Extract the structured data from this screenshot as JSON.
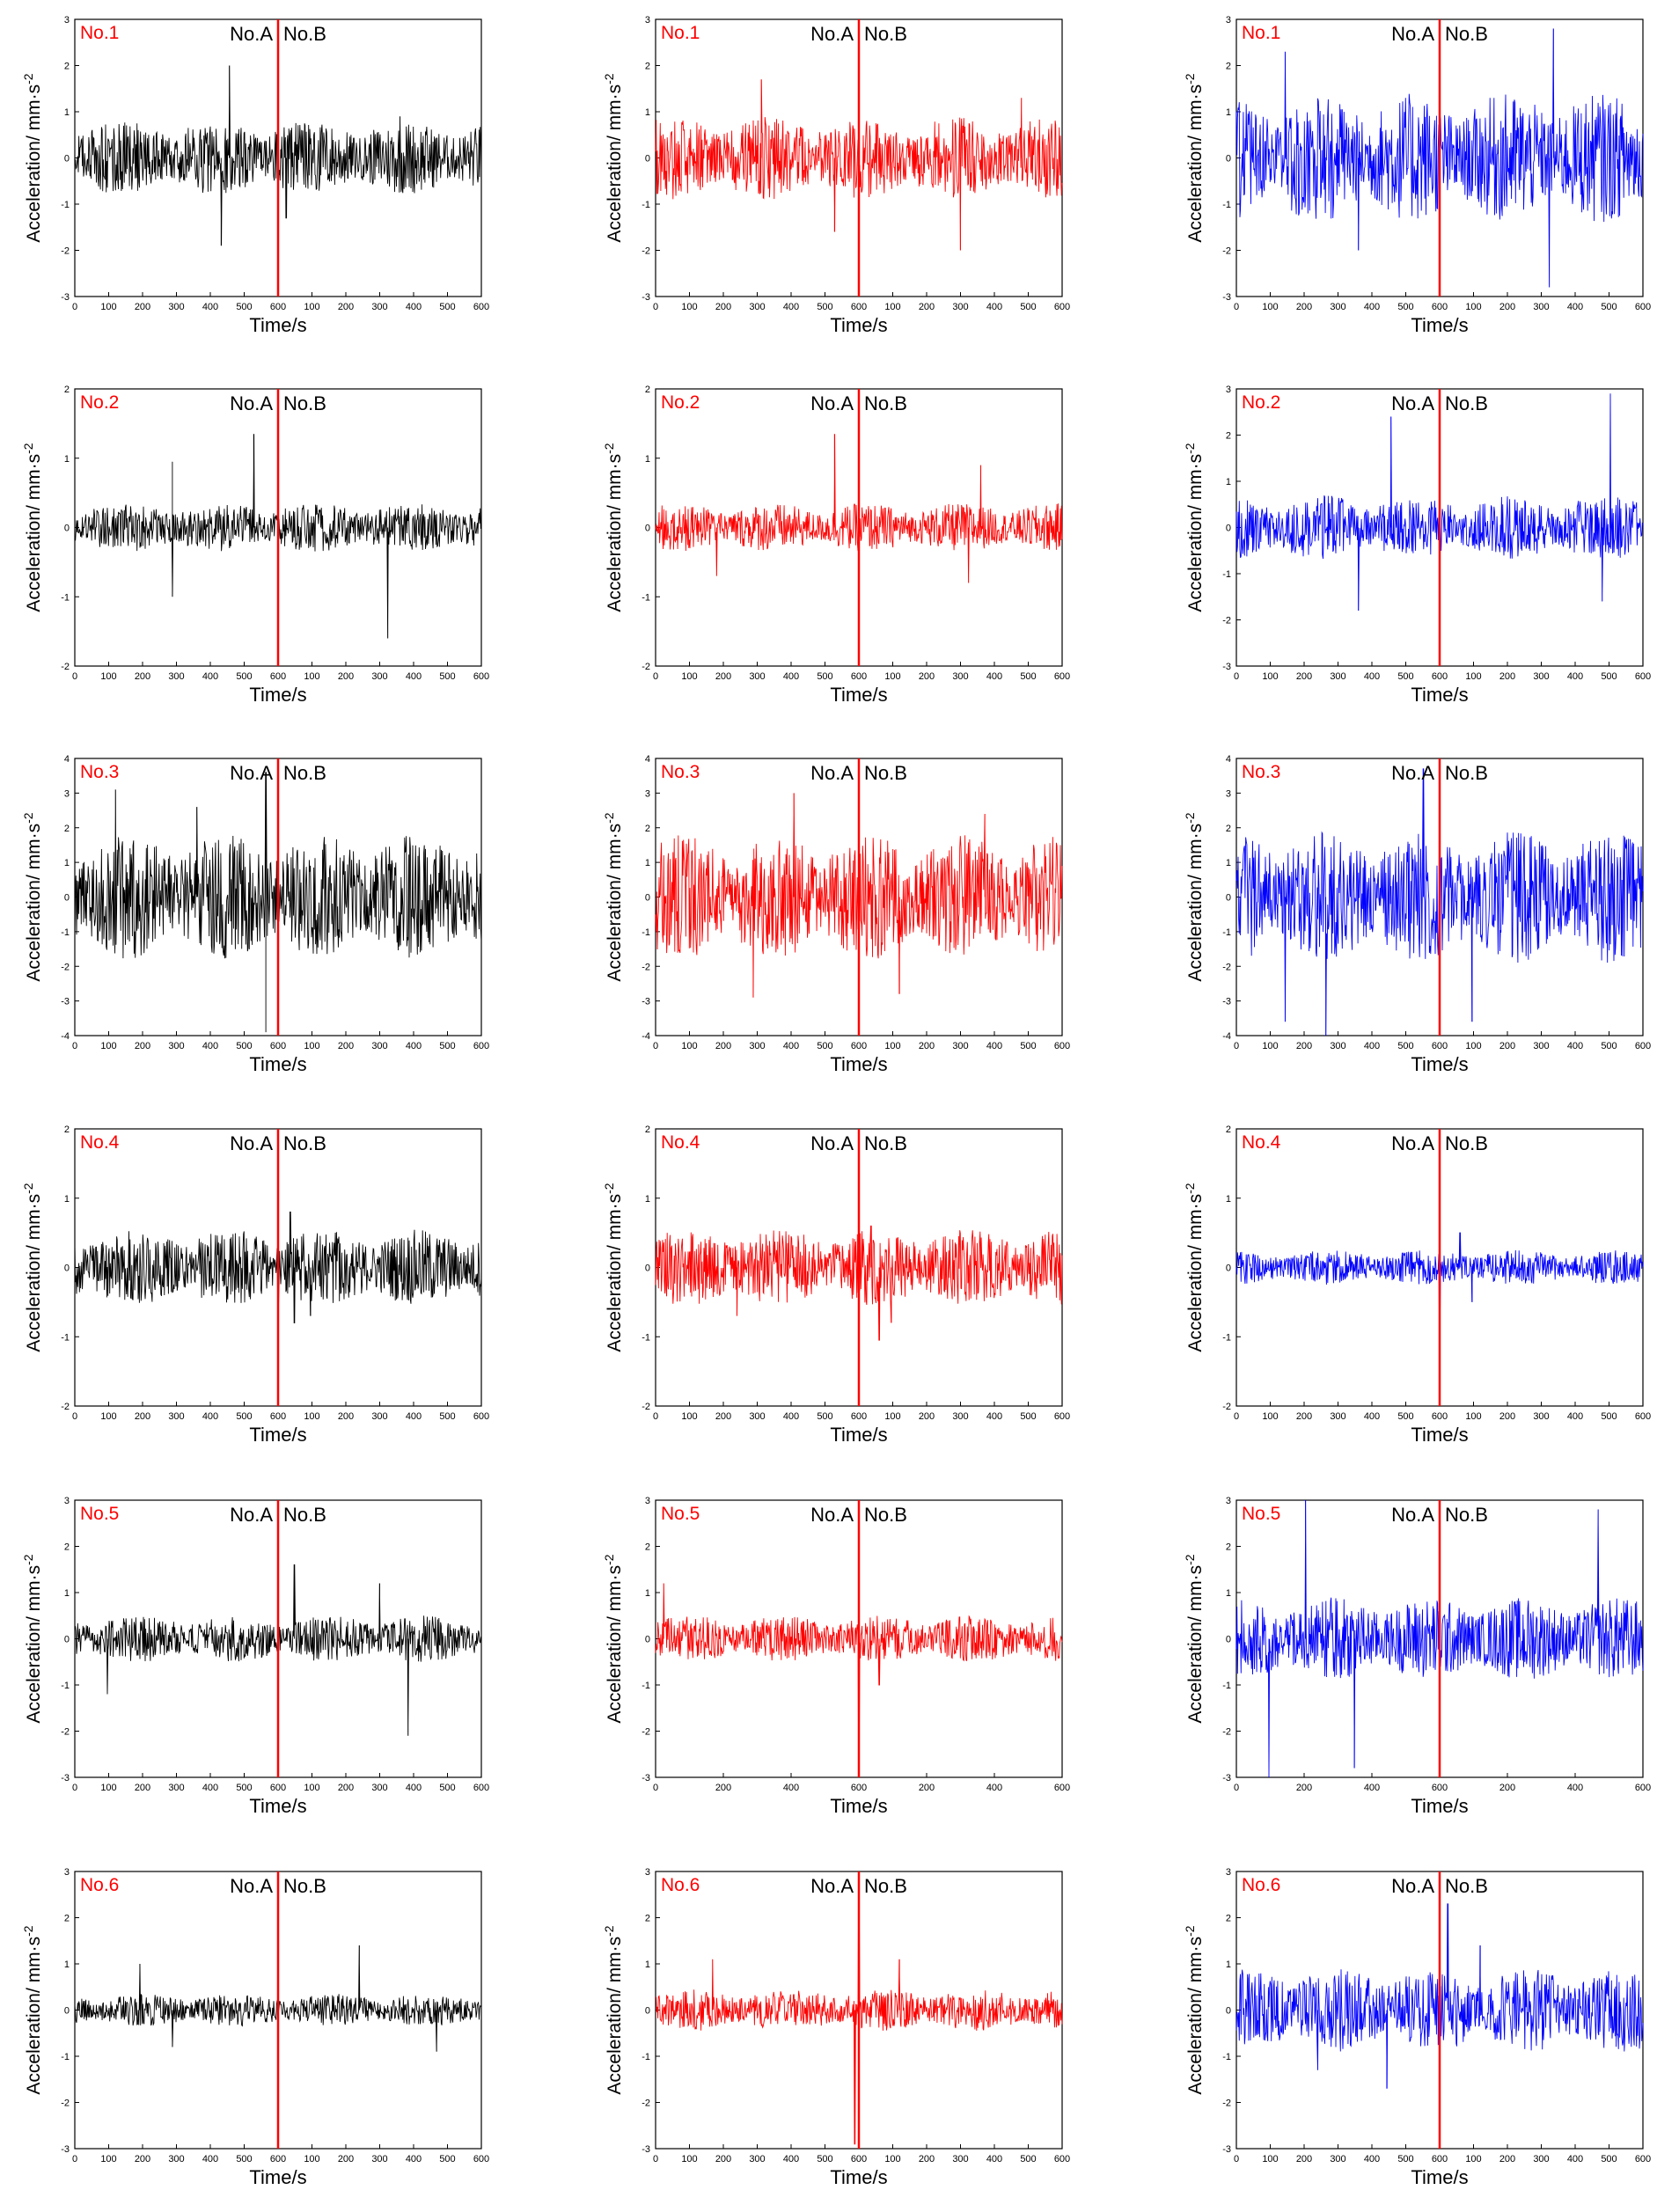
{
  "labels": {
    "ylabel": "Acceleration/ mm·s",
    "ylabel_sup": "-2",
    "xlabel": "Time/s",
    "left_label": "No.A",
    "right_label": "No.B"
  },
  "colors": {
    "columns": [
      "#000000",
      "#ff0000",
      "#0000ff"
    ],
    "divider": "#ff0000",
    "panel_label": "#ff0000"
  },
  "chart_data": [
    {
      "type": "line",
      "row": 1,
      "col": 1,
      "title": "No.1",
      "color": "#000000",
      "xlabel": "Time/s",
      "xticks": [
        "0",
        "100",
        "200",
        "300",
        "400",
        "500",
        "600",
        "100",
        "200",
        "300",
        "400",
        "500",
        "600"
      ],
      "ylim": [
        -3,
        3
      ],
      "yticks": [
        -3,
        -2,
        -1,
        0,
        1,
        2,
        3
      ],
      "amplitude": 0.8,
      "spikes": [
        [
          0.38,
          2.0
        ],
        [
          0.36,
          -1.9
        ],
        [
          0.52,
          -1.3
        ],
        [
          0.8,
          0.9
        ]
      ]
    },
    {
      "type": "line",
      "row": 1,
      "col": 2,
      "title": "No.1",
      "color": "#ff0000",
      "xlabel": "Time/s",
      "xticks": [
        "0",
        "100",
        "200",
        "300",
        "400",
        "500",
        "600",
        "100",
        "200",
        "300",
        "400",
        "500",
        "600"
      ],
      "ylim": [
        -3,
        3
      ],
      "yticks": [
        -3,
        -2,
        -1,
        0,
        1,
        2,
        3
      ],
      "amplitude": 0.9,
      "spikes": [
        [
          0.26,
          1.7
        ],
        [
          0.44,
          -1.6
        ],
        [
          0.75,
          -2.0
        ],
        [
          0.9,
          1.3
        ]
      ]
    },
    {
      "type": "line",
      "row": 1,
      "col": 3,
      "title": "No.1",
      "color": "#0000ff",
      "xlabel": "Time/s",
      "xticks": [
        "0",
        "100",
        "200",
        "300",
        "400",
        "500",
        "600",
        "100",
        "200",
        "300",
        "400",
        "500",
        "600"
      ],
      "ylim": [
        -3,
        3
      ],
      "yticks": [
        -3,
        -2,
        -1,
        0,
        1,
        2,
        3
      ],
      "amplitude": 1.4,
      "spikes": [
        [
          0.78,
          2.8
        ],
        [
          0.77,
          -2.8
        ],
        [
          0.3,
          -2.0
        ],
        [
          0.12,
          2.3
        ]
      ]
    },
    {
      "type": "line",
      "row": 2,
      "col": 1,
      "title": "No.2",
      "color": "#000000",
      "xlabel": "Time/s",
      "xticks": [
        "0",
        "100",
        "200",
        "300",
        "400",
        "500",
        "600",
        "100",
        "200",
        "300",
        "400",
        "500",
        "600"
      ],
      "ylim": [
        -2,
        2
      ],
      "yticks": [
        -2,
        -1,
        0,
        1,
        2
      ],
      "amplitude": 0.35,
      "spikes": [
        [
          0.44,
          1.35
        ],
        [
          0.24,
          0.95
        ],
        [
          0.77,
          -1.6
        ],
        [
          0.24,
          -1.0
        ]
      ]
    },
    {
      "type": "line",
      "row": 2,
      "col": 2,
      "title": "No.2",
      "color": "#ff0000",
      "xlabel": "Time/s",
      "xticks": [
        "0",
        "100",
        "200",
        "300",
        "400",
        "500",
        "600",
        "100",
        "200",
        "300",
        "400",
        "500",
        "600"
      ],
      "ylim": [
        -2,
        2
      ],
      "yticks": [
        -2,
        -1,
        0,
        1,
        2
      ],
      "amplitude": 0.35,
      "spikes": [
        [
          0.44,
          1.35
        ],
        [
          0.77,
          -0.8
        ],
        [
          0.8,
          0.9
        ],
        [
          0.15,
          -0.7
        ]
      ]
    },
    {
      "type": "line",
      "row": 2,
      "col": 3,
      "title": "No.2",
      "color": "#0000ff",
      "xlabel": "Time/s",
      "xticks": [
        "0",
        "100",
        "200",
        "300",
        "400",
        "500",
        "600",
        "100",
        "200",
        "300",
        "400",
        "500",
        "600"
      ],
      "ylim": [
        -3,
        3
      ],
      "yticks": [
        -3,
        -2,
        -1,
        0,
        1,
        2,
        3
      ],
      "amplitude": 0.7,
      "spikes": [
        [
          0.92,
          2.9
        ],
        [
          0.38,
          2.4
        ],
        [
          0.3,
          -1.8
        ],
        [
          0.9,
          -1.6
        ]
      ]
    },
    {
      "type": "line",
      "row": 3,
      "col": 1,
      "title": "No.3",
      "color": "#000000",
      "xlabel": "Time/s",
      "xticks": [
        "0",
        "100",
        "200",
        "300",
        "400",
        "500",
        "600",
        "100",
        "200",
        "300",
        "400",
        "500",
        "600"
      ],
      "ylim": [
        -4,
        4
      ],
      "yticks": [
        -4,
        -3,
        -2,
        -1,
        0,
        1,
        2,
        3,
        4
      ],
      "amplitude": 1.8,
      "spikes": [
        [
          0.47,
          -3.9
        ],
        [
          0.47,
          3.6
        ],
        [
          0.1,
          3.1
        ],
        [
          0.3,
          2.6
        ]
      ]
    },
    {
      "type": "line",
      "row": 3,
      "col": 2,
      "title": "No.3",
      "color": "#ff0000",
      "xlabel": "Time/s",
      "xticks": [
        "0",
        "100",
        "200",
        "300",
        "400",
        "500",
        "600",
        "100",
        "200",
        "300",
        "400",
        "500",
        "600"
      ],
      "ylim": [
        -4,
        4
      ],
      "yticks": [
        -4,
        -3,
        -2,
        -1,
        0,
        1,
        2,
        3,
        4
      ],
      "amplitude": 1.8,
      "spikes": [
        [
          0.34,
          3.0
        ],
        [
          0.24,
          -2.9
        ],
        [
          0.81,
          2.4
        ],
        [
          0.6,
          -2.8
        ]
      ]
    },
    {
      "type": "line",
      "row": 3,
      "col": 3,
      "title": "No.3",
      "color": "#0000ff",
      "xlabel": "Time/s",
      "xticks": [
        "0",
        "100",
        "200",
        "300",
        "400",
        "500",
        "600",
        "100",
        "200",
        "300",
        "400",
        "500",
        "600"
      ],
      "ylim": [
        -4,
        4
      ],
      "yticks": [
        -4,
        -3,
        -2,
        -1,
        0,
        1,
        2,
        3,
        4
      ],
      "amplitude": 1.9,
      "spikes": [
        [
          0.12,
          -3.6
        ],
        [
          0.22,
          -4.0
        ],
        [
          0.58,
          -3.6
        ],
        [
          0.46,
          3.7
        ]
      ]
    },
    {
      "type": "line",
      "row": 4,
      "col": 1,
      "title": "No.4",
      "color": "#000000",
      "xlabel": "Time/s",
      "xticks": [
        "0",
        "100",
        "200",
        "300",
        "400",
        "500",
        "600",
        "100",
        "200",
        "300",
        "400",
        "500",
        "600"
      ],
      "ylim": [
        -2,
        2
      ],
      "yticks": [
        -2,
        -1,
        0,
        1,
        2
      ],
      "amplitude": 0.55,
      "spikes": [
        [
          0.53,
          0.8
        ],
        [
          0.54,
          -0.8
        ],
        [
          0.5,
          -0.7
        ],
        [
          0.58,
          -0.7
        ]
      ]
    },
    {
      "type": "line",
      "row": 4,
      "col": 2,
      "title": "No.4",
      "color": "#ff0000",
      "xlabel": "Time/s",
      "xticks": [
        "0",
        "100",
        "200",
        "300",
        "400",
        "500",
        "600",
        "100",
        "200",
        "300",
        "400",
        "500",
        "600"
      ],
      "ylim": [
        -2,
        2
      ],
      "yticks": [
        -2,
        -1,
        0,
        1,
        2
      ],
      "amplitude": 0.55,
      "spikes": [
        [
          0.55,
          -1.05
        ],
        [
          0.53,
          0.6
        ],
        [
          0.58,
          -0.8
        ],
        [
          0.2,
          -0.7
        ]
      ]
    },
    {
      "type": "line",
      "row": 4,
      "col": 3,
      "title": "No.4",
      "color": "#0000ff",
      "xlabel": "Time/s",
      "xticks": [
        "0",
        "100",
        "200",
        "300",
        "400",
        "500",
        "600",
        "100",
        "200",
        "300",
        "400",
        "500",
        "600"
      ],
      "ylim": [
        -2,
        2
      ],
      "yticks": [
        -2,
        -1,
        0,
        1,
        2
      ],
      "amplitude": 0.25,
      "spikes": [
        [
          0.5,
          0.95
        ],
        [
          0.5,
          -1.0
        ],
        [
          0.55,
          0.5
        ],
        [
          0.58,
          -0.5
        ]
      ]
    },
    {
      "type": "line",
      "row": 5,
      "col": 1,
      "title": "No.5",
      "color": "#000000",
      "xlabel": "Time/s",
      "xticks": [
        "0",
        "100",
        "200",
        "300",
        "400",
        "500",
        "600",
        "100",
        "200",
        "300",
        "400",
        "500",
        "600"
      ],
      "ylim": [
        -3,
        3
      ],
      "yticks": [
        -3,
        -2,
        -1,
        0,
        1,
        2,
        3
      ],
      "amplitude": 0.5,
      "spikes": [
        [
          0.54,
          1.6
        ],
        [
          0.82,
          -2.1
        ],
        [
          0.08,
          -1.2
        ],
        [
          0.75,
          1.2
        ]
      ]
    },
    {
      "type": "line",
      "row": 5,
      "col": 2,
      "title": "No.5",
      "color": "#ff0000",
      "xlabel": "Time/s",
      "xticks": [
        "0",
        "200",
        "400",
        "600",
        "200",
        "400",
        "600"
      ],
      "ylim": [
        -3,
        3
      ],
      "yticks": [
        -3,
        -2,
        -1,
        0,
        1,
        2,
        3
      ],
      "amplitude": 0.5,
      "spikes": [
        [
          0.5,
          2.9
        ],
        [
          0.5,
          -2.8
        ],
        [
          0.02,
          1.2
        ],
        [
          0.55,
          -1.0
        ]
      ]
    },
    {
      "type": "line",
      "row": 5,
      "col": 3,
      "title": "No.5",
      "color": "#0000ff",
      "xlabel": "Time/s",
      "xticks": [
        "0",
        "200",
        "400",
        "600",
        "200",
        "400",
        "600"
      ],
      "ylim": [
        -3,
        3
      ],
      "yticks": [
        -3,
        -2,
        -1,
        0,
        1,
        2,
        3
      ],
      "amplitude": 0.9,
      "spikes": [
        [
          0.17,
          3.0
        ],
        [
          0.08,
          -3.0
        ],
        [
          0.29,
          -2.8
        ],
        [
          0.89,
          2.8
        ]
      ]
    },
    {
      "type": "line",
      "row": 6,
      "col": 1,
      "title": "No.6",
      "color": "#000000",
      "xlabel": "Time/s",
      "xticks": [
        "0",
        "100",
        "200",
        "300",
        "400",
        "500",
        "600",
        "100",
        "200",
        "300",
        "400",
        "500",
        "600"
      ],
      "ylim": [
        -3,
        3
      ],
      "yticks": [
        -3,
        -2,
        -1,
        0,
        1,
        2,
        3
      ],
      "amplitude": 0.35,
      "spikes": [
        [
          0.7,
          1.4
        ],
        [
          0.16,
          1.0
        ],
        [
          0.24,
          -0.8
        ],
        [
          0.89,
          -0.9
        ]
      ]
    },
    {
      "type": "line",
      "row": 6,
      "col": 2,
      "title": "No.6",
      "color": "#ff0000",
      "xlabel": "Time/s",
      "xticks": [
        "0",
        "100",
        "200",
        "300",
        "400",
        "500",
        "600",
        "100",
        "200",
        "300",
        "400",
        "500",
        "600"
      ],
      "ylim": [
        -3,
        3
      ],
      "yticks": [
        -3,
        -2,
        -1,
        0,
        1,
        2,
        3
      ],
      "amplitude": 0.45,
      "spikes": [
        [
          0.49,
          -2.9
        ],
        [
          0.5,
          2.8
        ],
        [
          0.6,
          1.1
        ],
        [
          0.14,
          1.1
        ]
      ]
    },
    {
      "type": "line",
      "row": 6,
      "col": 3,
      "title": "No.6",
      "color": "#0000ff",
      "xlabel": "Time/s",
      "xticks": [
        "0",
        "100",
        "200",
        "300",
        "400",
        "500",
        "600",
        "100",
        "200",
        "300",
        "400",
        "500",
        "600"
      ],
      "ylim": [
        -3,
        3
      ],
      "yticks": [
        -3,
        -2,
        -1,
        0,
        1,
        2,
        3
      ],
      "amplitude": 0.9,
      "spikes": [
        [
          0.52,
          2.3
        ],
        [
          0.6,
          1.4
        ],
        [
          0.37,
          -1.7
        ],
        [
          0.2,
          -1.3
        ]
      ]
    }
  ]
}
